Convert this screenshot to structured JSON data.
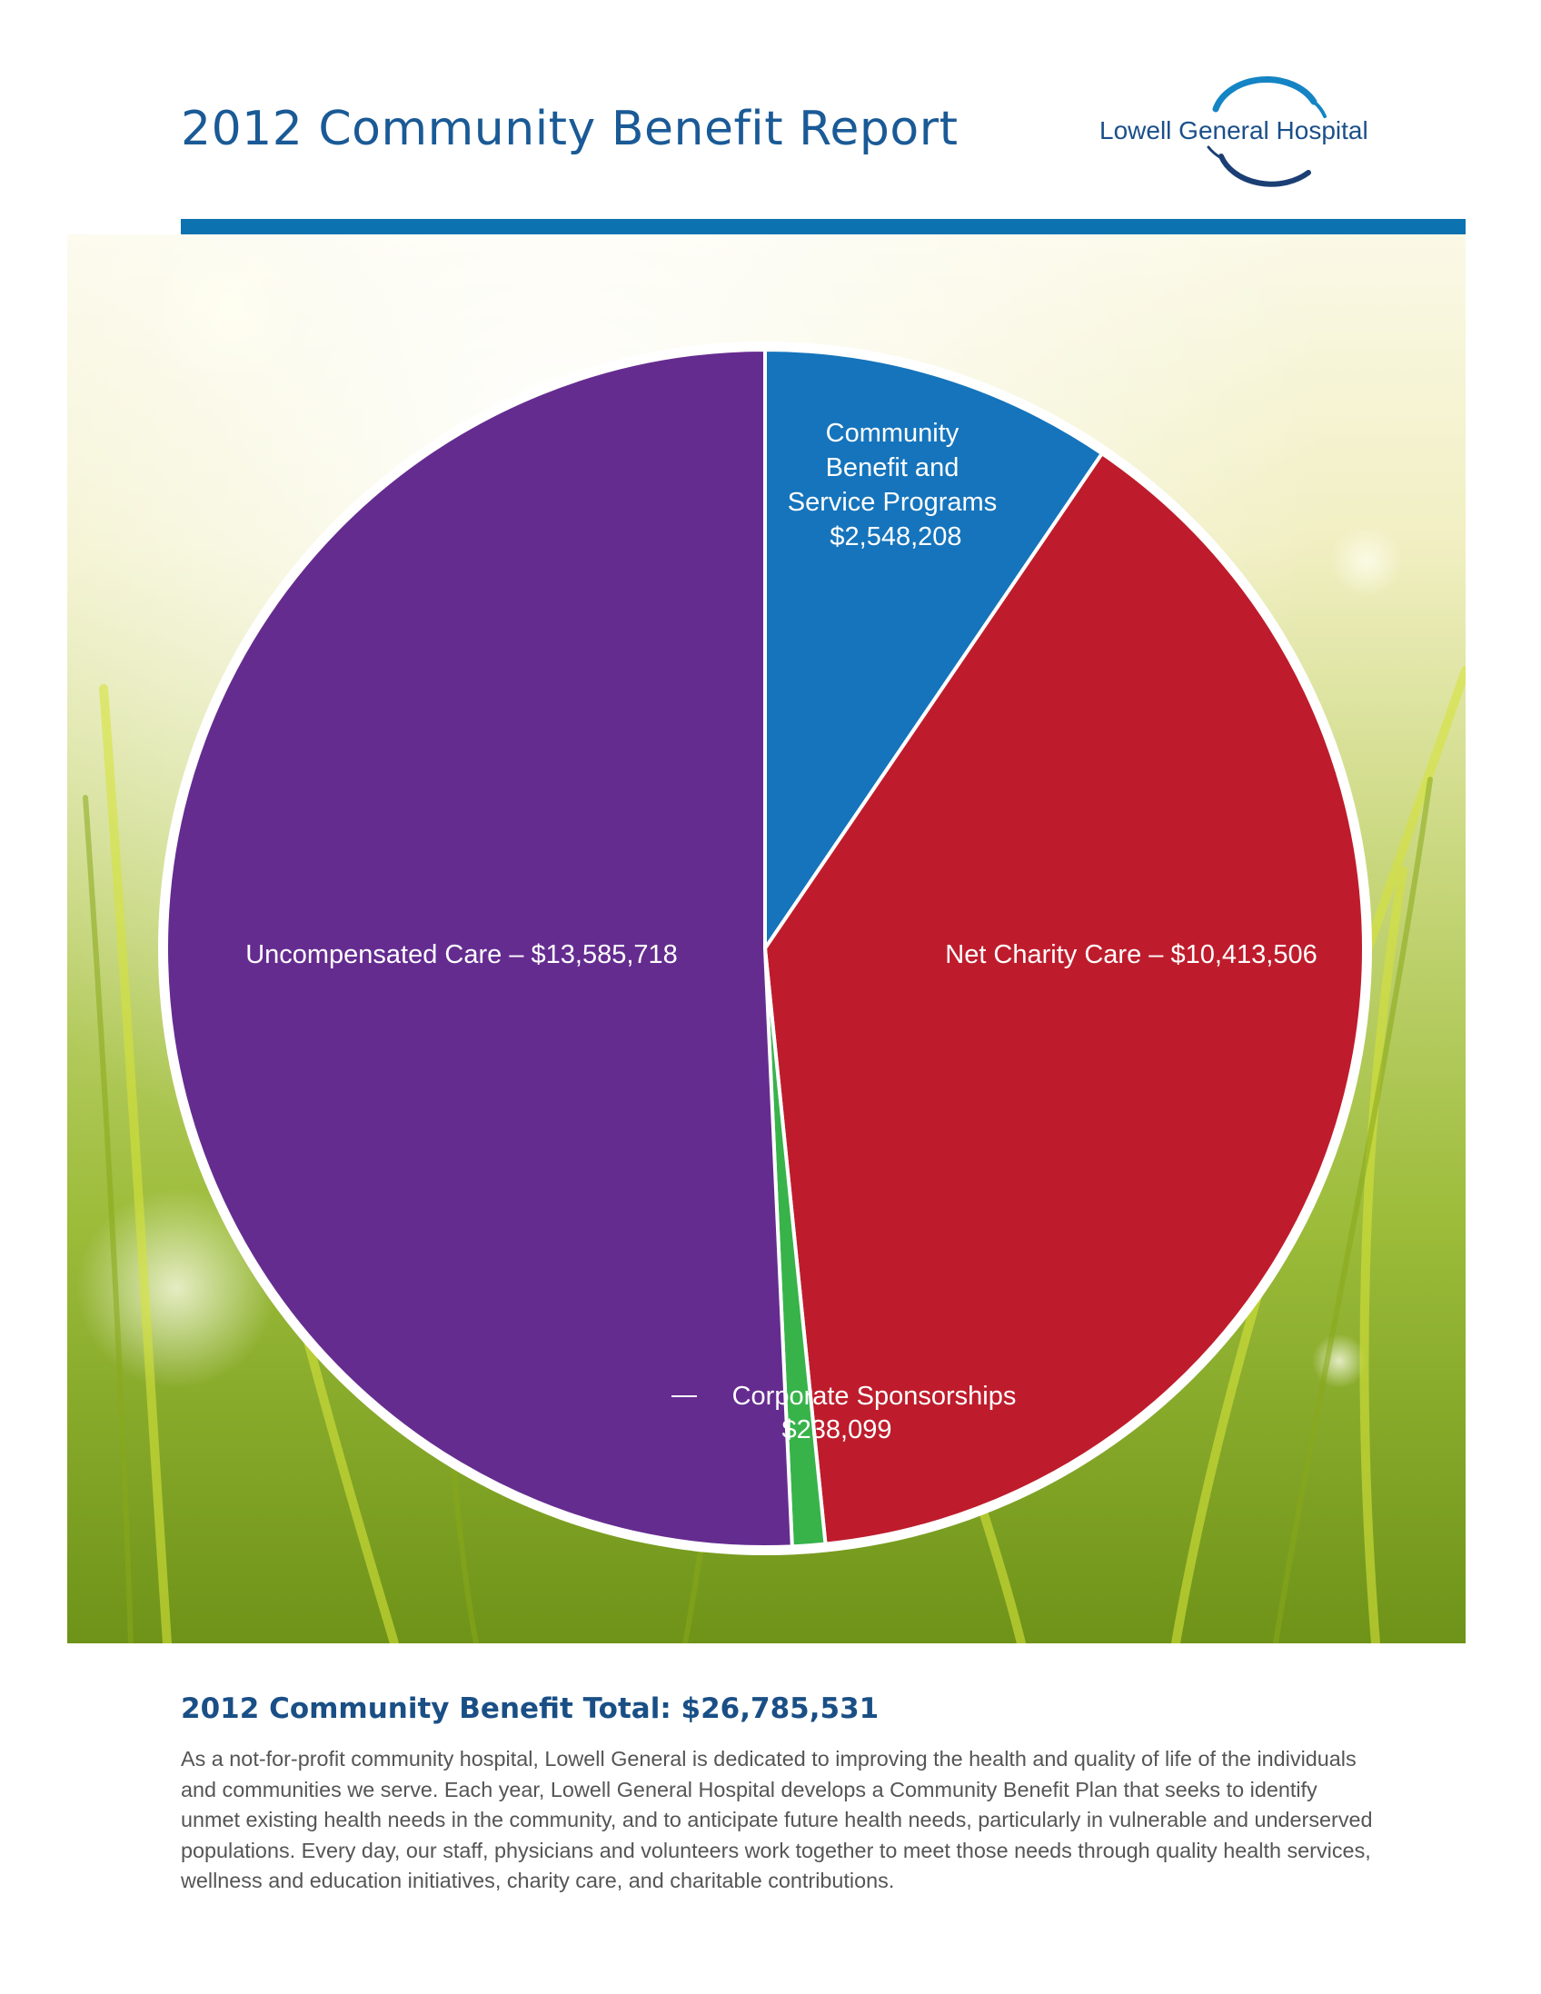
{
  "header": {
    "title": "2012 Community Benefit Report",
    "logo_text": "Lowell General Hospital"
  },
  "colors": {
    "brand_blue": "#0d72b0",
    "title_blue": "#1a5a96",
    "community_benefit": "#1574bc",
    "net_charity": "#be1c2c",
    "corporate": "#37b34a",
    "uncompensated": "#652c90"
  },
  "chart_data": {
    "type": "pie",
    "title": "",
    "slices": [
      {
        "label_lines": [
          "Community",
          "Benefit and",
          "Service Programs"
        ],
        "value_text": "$2,548,208",
        "value": 2548208,
        "color": "#1574bc"
      },
      {
        "label_lines": [
          "Net Charity Care – $10,413,506"
        ],
        "value_text": "",
        "value": 10413506,
        "color": "#be1c2c"
      },
      {
        "label_lines": [
          "Corporate Sponsorships"
        ],
        "value_text": "$238,099",
        "value": 238099,
        "color": "#37b34a"
      },
      {
        "label_lines": [
          "Uncompensated Care – $13,585,718"
        ],
        "value_text": "",
        "value": 13585718,
        "color": "#652c90"
      }
    ]
  },
  "summary": {
    "total_heading": "2012 Community Benefit Total: $26,785,531",
    "paragraph": "As a not-for-profit community hospital, Lowell General is dedicated to improving the health and quality of life of the individuals and communities we serve. Each year, Lowell General Hospital develops a Community Benefit Plan that seeks to identify unmet existing health needs in the community, and to anticipate future health needs, particularly in vulnerable and underserved populations. Every day, our staff, physicians and volunteers work together to meet those needs through quality health services, wellness and education initiatives, charity care, and charitable contributions."
  }
}
